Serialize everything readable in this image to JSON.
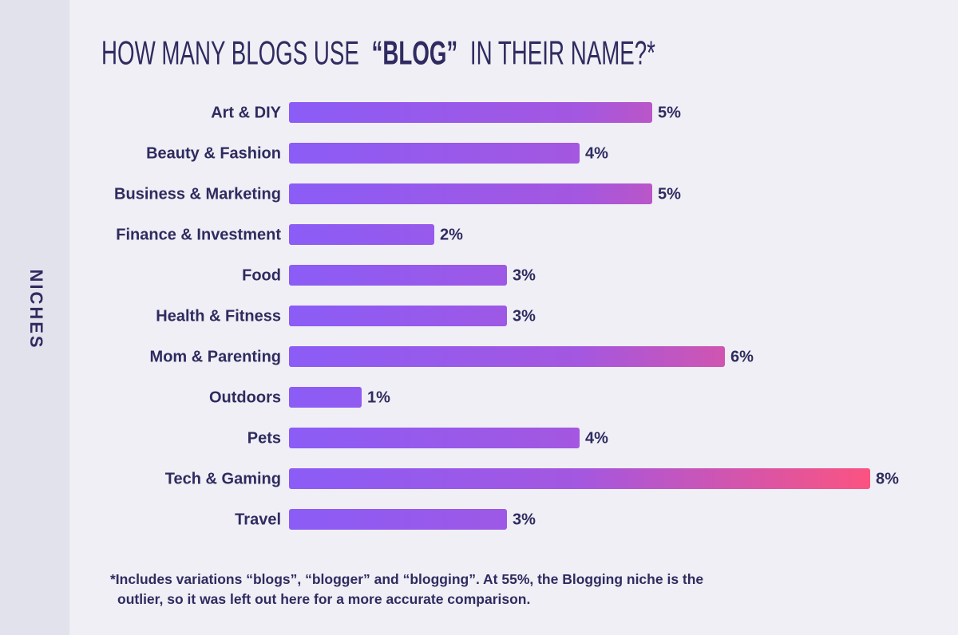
{
  "chart_data": {
    "type": "bar",
    "orientation": "horizontal",
    "title": {
      "before": "HOW MANY BLOGS USE",
      "emphasis": "“BLOG”",
      "after": "IN THEIR NAME?*"
    },
    "y_label": "NICHES",
    "categories": [
      "Art & DIY",
      "Beauty & Fashion",
      "Business & Marketing",
      "Finance & Investment",
      "Food",
      "Health & Fitness",
      "Mom & Parenting",
      "Outdoors",
      "Pets",
      "Tech & Gaming",
      "Travel"
    ],
    "values": [
      5,
      4,
      5,
      2,
      3,
      3,
      6,
      1,
      4,
      8,
      3
    ],
    "value_labels": [
      "5%",
      "4%",
      "5%",
      "2%",
      "3%",
      "3%",
      "6%",
      "1%",
      "4%",
      "8%",
      "3%"
    ],
    "colors": [
      "#8b5cf6",
      "#a457e0",
      "#fb5381"
    ],
    "footnote": "*Includes variations “blogs”, “blogger” and “blogging”. At 55%, the Blogging niche is the outlier, so it was left out here for a more accurate comparison."
  }
}
